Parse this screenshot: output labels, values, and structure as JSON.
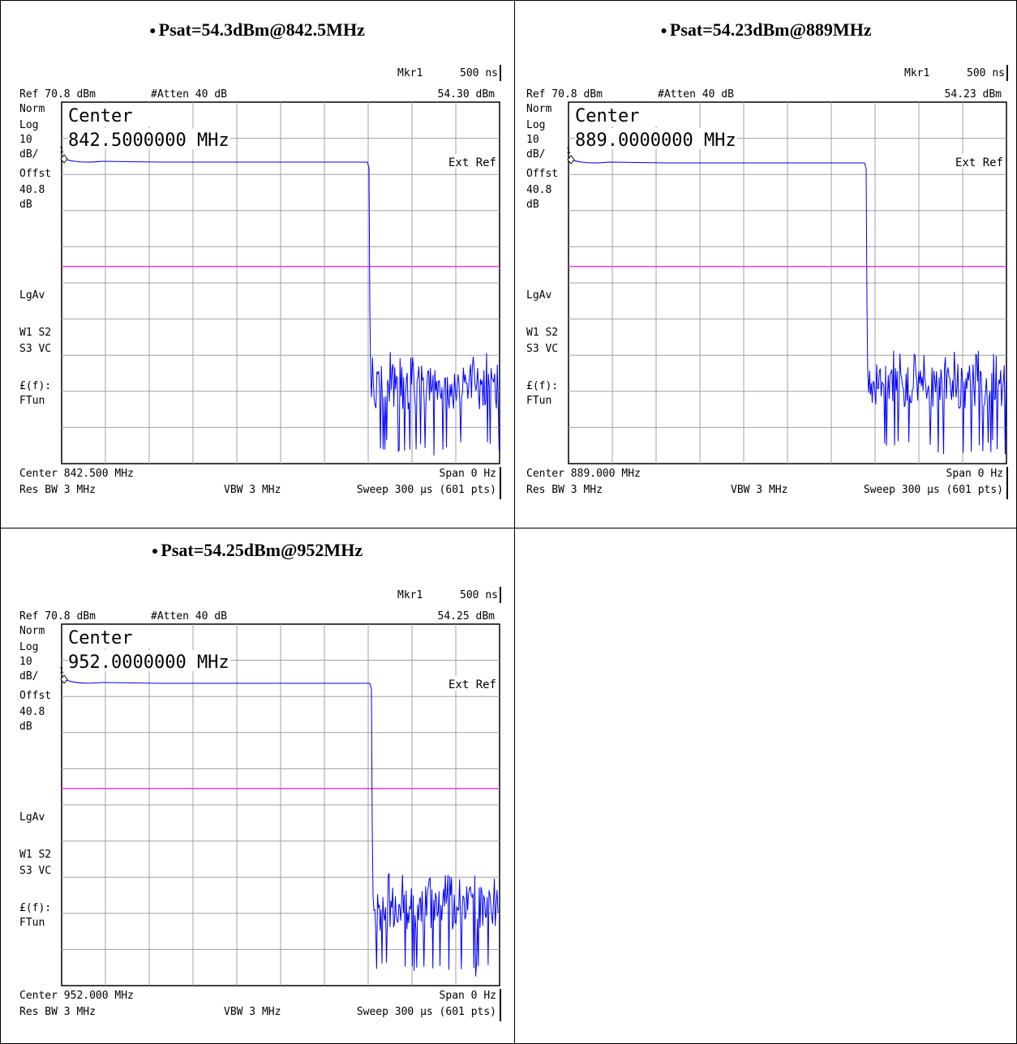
{
  "colors": {
    "trace": "#0000ff",
    "display_line": "#e040e0",
    "grid": "#a0a0a0",
    "text": "#000000"
  },
  "panels": [
    {
      "title": "Psat=54.3dBm@842.5MHz",
      "mkr_label": "Mkr1",
      "mkr_time": "500 ns",
      "ref": "Ref 70.8 dBm",
      "atten": "#Atten 40 dB",
      "mkr_value": "54.30 dBm",
      "left_labels": [
        "Norm",
        "Log",
        "10",
        "dB/",
        "Offst",
        "40.8",
        "dB"
      ],
      "lgav": "LgAv",
      "w1s2": "W1  S2",
      "s3vc": "S3  VC",
      "ff": "£(f):",
      "ftun": "FTun",
      "center_big": "Center",
      "center_big_freq": "842.5000000 MHz",
      "ext_ref": "Ext Ref",
      "marker_num": "1",
      "center": "Center 842.500 MHz",
      "span": "Span 0 Hz",
      "res_bw": "Res BW 3 MHz",
      "vbw": "VBW 3 MHz",
      "sweep": "Sweep 300 µs (601 pts)"
    },
    {
      "title": "Psat=54.23dBm@889MHz",
      "mkr_label": "Mkr1",
      "mkr_time": "500 ns",
      "ref": "Ref 70.8 dBm",
      "atten": "#Atten 40 dB",
      "mkr_value": "54.23 dBm",
      "left_labels": [
        "Norm",
        "Log",
        "10",
        "dB/",
        "Offst",
        "40.8",
        "dB"
      ],
      "lgav": "LgAv",
      "w1s2": "W1  S2",
      "s3vc": "S3  VC",
      "ff": "£(f):",
      "ftun": "FTun",
      "center_big": "Center",
      "center_big_freq": "889.0000000 MHz",
      "ext_ref": "Ext Ref",
      "marker_num": "1",
      "center": "Center 889.000 MHz",
      "span": "Span 0 Hz",
      "res_bw": "Res BW 3 MHz",
      "vbw": "VBW 3 MHz",
      "sweep": "Sweep 300 µs (601 pts)"
    },
    {
      "title": "Psat=54.25dBm@952MHz",
      "mkr_label": "Mkr1",
      "mkr_time": "500 ns",
      "ref": "Ref 70.8 dBm",
      "atten": "#Atten 40 dB",
      "mkr_value": "54.25 dBm",
      "left_labels": [
        "Norm",
        "Log",
        "10",
        "dB/",
        "Offst",
        "40.8",
        "dB"
      ],
      "lgav": "LgAv",
      "w1s2": "W1  S2",
      "s3vc": "S3  VC",
      "ff": "£(f):",
      "ftun": "FTun",
      "center_big": "Center",
      "center_big_freq": "952.0000000 MHz",
      "ext_ref": "Ext Ref",
      "marker_num": "1",
      "center": "Center 952.000 MHz",
      "span": "Span 0 Hz",
      "res_bw": "Res BW 3 MHz",
      "vbw": "VBW 3 MHz",
      "sweep": "Sweep 300 µs (601 pts)"
    }
  ],
  "chart_data": [
    {
      "type": "line",
      "title": "Psat=54.3dBm@842.5MHz",
      "ylim": [
        -29.2,
        70.8
      ],
      "y_unit": "dBm",
      "y_div": 10,
      "xlim": [
        0,
        300
      ],
      "x_unit": "µs",
      "points": 601,
      "series": [
        {
          "values_summary": {
            "on_level_dbm": 54.3,
            "off_time_us": 200,
            "noise_floor_dbm": [
              -21,
              -3
            ]
          }
        }
      ],
      "display_line_dbm": 25.8,
      "marker": {
        "time": "500 ns",
        "value_dbm": 54.3
      }
    },
    {
      "type": "line",
      "title": "Psat=54.23dBm@889MHz",
      "ylim": [
        -29.2,
        70.8
      ],
      "y_unit": "dBm",
      "y_div": 10,
      "xlim": [
        0,
        300
      ],
      "x_unit": "µs",
      "points": 601,
      "series": [
        {
          "values_summary": {
            "on_level_dbm": 54.23,
            "off_time_us": 198,
            "noise_floor_dbm": [
              -29,
              -3
            ]
          }
        }
      ],
      "display_line_dbm": 25.8,
      "marker": {
        "time": "500 ns",
        "value_dbm": 54.23
      }
    },
    {
      "type": "line",
      "title": "Psat=54.25dBm@952MHz",
      "ylim": [
        -29.2,
        70.8
      ],
      "y_unit": "dBm",
      "y_div": 10,
      "xlim": [
        0,
        300
      ],
      "x_unit": "µs",
      "points": 601,
      "series": [
        {
          "values_summary": {
            "on_level_dbm": 54.25,
            "off_time_us": 200,
            "noise_floor_dbm": [
              -29,
              -3
            ]
          }
        }
      ],
      "display_line_dbm": 25.8,
      "marker": {
        "time": "500 ns",
        "value_dbm": 54.25
      }
    }
  ]
}
